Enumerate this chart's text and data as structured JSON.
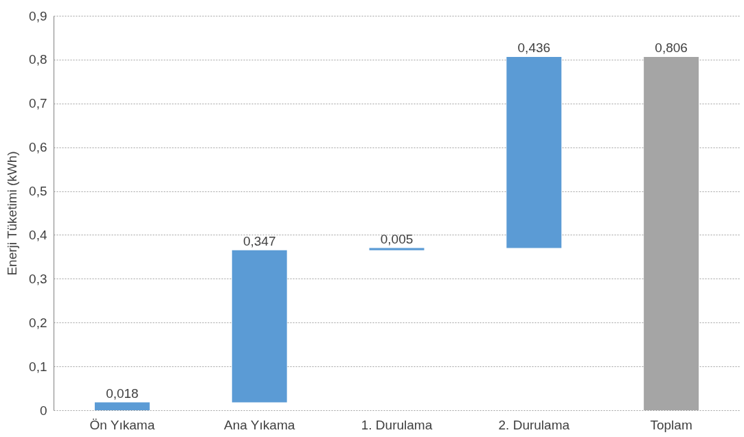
{
  "chart_data": {
    "type": "bar",
    "ylabel": "Enerji Tüketimi (kWh)",
    "categories": [
      "Ön Yıkama",
      "Ana Yıkama",
      "1. Durulama",
      "2. Durulama",
      "Toplam"
    ],
    "values": [
      0.018,
      0.347,
      0.005,
      0.436,
      0.806
    ],
    "base": [
      0,
      0.018,
      0.365,
      0.37,
      0
    ],
    "colors": [
      "#5b9bd5",
      "#5b9bd5",
      "#5b9bd5",
      "#5b9bd5",
      "#a5a5a5"
    ],
    "value_labels": [
      "0,018",
      "0,347",
      "0,005",
      "0,436",
      "0,806"
    ],
    "ylim": [
      0,
      0.9
    ],
    "yticks": [
      0,
      {
        "value": 0.1,
        "label": "0,1"
      },
      {
        "value": 0.2,
        "label": "0,2"
      },
      {
        "value": 0.3,
        "label": "0,3"
      },
      {
        "value": 0.4,
        "label": "0,4"
      },
      {
        "value": 0.5,
        "label": "0,5"
      },
      {
        "value": 0.6,
        "label": "0,6"
      },
      {
        "value": 0.7,
        "label": "0,7"
      },
      {
        "value": 0.8,
        "label": "0,8"
      },
      {
        "value": 0.9,
        "label": "0,9"
      }
    ],
    "grid": "y"
  }
}
